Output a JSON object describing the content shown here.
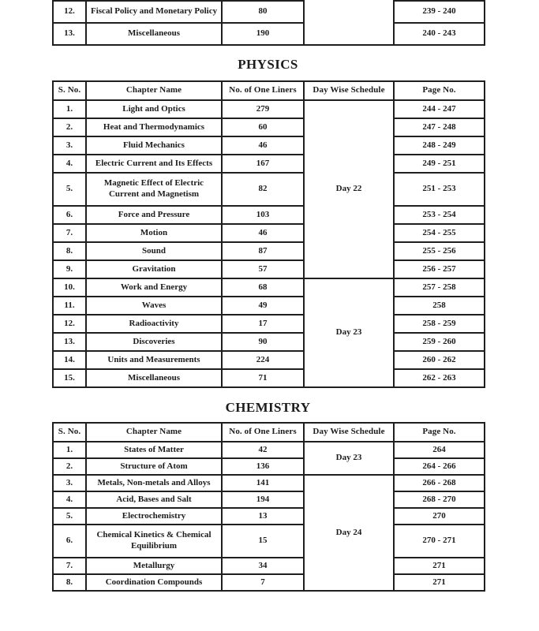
{
  "colors": {
    "paper": "#ffffff",
    "ink": "#1c1c1c",
    "border": "#1f1f1f"
  },
  "top_table": {
    "schedule_label": "",
    "rows": [
      {
        "sno": "12.",
        "chapter": "Fiscal Policy and Monetary Policy",
        "liners": "80",
        "pages": "239 - 240"
      },
      {
        "sno": "13.",
        "chapter": "Miscellaneous",
        "liners": "190",
        "pages": "240 - 243"
      }
    ]
  },
  "physics": {
    "title": "PHYSICS",
    "headers": {
      "sno": "S. No.",
      "chapter": "Chapter Name",
      "liners": "No. of One Liners",
      "schedule": "Day Wise Schedule",
      "pages": "Page No."
    },
    "schedules": [
      {
        "label": "Day 22",
        "span": 9
      },
      {
        "label": "Day 23",
        "span": 6
      }
    ],
    "rows": [
      {
        "sno": "1.",
        "chapter": "Light and Optics",
        "liners": "279",
        "pages": "244 - 247"
      },
      {
        "sno": "2.",
        "chapter": "Heat and Thermodynamics",
        "liners": "60",
        "pages": "247 - 248"
      },
      {
        "sno": "3.",
        "chapter": "Fluid Mechanics",
        "liners": "46",
        "pages": "248 - 249"
      },
      {
        "sno": "4.",
        "chapter": "Electric Current and Its Effects",
        "liners": "167",
        "pages": "249 - 251"
      },
      {
        "sno": "5.",
        "chapter": "Magnetic Effect of Electric Current and Magnetism",
        "liners": "82",
        "pages": "251 - 253"
      },
      {
        "sno": "6.",
        "chapter": "Force and Pressure",
        "liners": "103",
        "pages": "253 - 254"
      },
      {
        "sno": "7.",
        "chapter": "Motion",
        "liners": "46",
        "pages": "254 - 255"
      },
      {
        "sno": "8.",
        "chapter": "Sound",
        "liners": "87",
        "pages": "255 - 256"
      },
      {
        "sno": "9.",
        "chapter": "Gravitation",
        "liners": "57",
        "pages": "256 - 257"
      },
      {
        "sno": "10.",
        "chapter": "Work and Energy",
        "liners": "68",
        "pages": "257 - 258"
      },
      {
        "sno": "11.",
        "chapter": "Waves",
        "liners": "49",
        "pages": "258"
      },
      {
        "sno": "12.",
        "chapter": "Radioactivity",
        "liners": "17",
        "pages": "258 - 259"
      },
      {
        "sno": "13.",
        "chapter": "Discoveries",
        "liners": "90",
        "pages": "259 - 260"
      },
      {
        "sno": "14.",
        "chapter": "Units and Measurements",
        "liners": "224",
        "pages": "260 - 262"
      },
      {
        "sno": "15.",
        "chapter": "Miscellaneous",
        "liners": "71",
        "pages": "262 - 263"
      }
    ]
  },
  "chemistry": {
    "title": "CHEMISTRY",
    "headers": {
      "sno": "S. No.",
      "chapter": "Chapter Name",
      "liners": "No. of One Liners",
      "schedule": "Day Wise Schedule",
      "pages": "Page No."
    },
    "schedules": [
      {
        "label": "Day 23",
        "span": 2
      },
      {
        "label": "Day 24",
        "span": 6
      }
    ],
    "rows": [
      {
        "sno": "1.",
        "chapter": "States of Matter",
        "liners": "42",
        "pages": "264"
      },
      {
        "sno": "2.",
        "chapter": "Structure of Atom",
        "liners": "136",
        "pages": "264 - 266"
      },
      {
        "sno": "3.",
        "chapter": "Metals, Non-metals and Alloys",
        "liners": "141",
        "pages": "266 - 268"
      },
      {
        "sno": "4.",
        "chapter": "Acid, Bases and Salt",
        "liners": "194",
        "pages": "268 - 270"
      },
      {
        "sno": "5.",
        "chapter": "Electrochemistry",
        "liners": "13",
        "pages": "270"
      },
      {
        "sno": "6.",
        "chapter": "Chemical Kinetics & Chemical Equilibrium",
        "liners": "15",
        "pages": "270 - 271"
      },
      {
        "sno": "7.",
        "chapter": "Metallurgy",
        "liners": "34",
        "pages": "271"
      },
      {
        "sno": "8.",
        "chapter": "Coordination Compounds",
        "liners": "7",
        "pages": "271"
      }
    ]
  }
}
